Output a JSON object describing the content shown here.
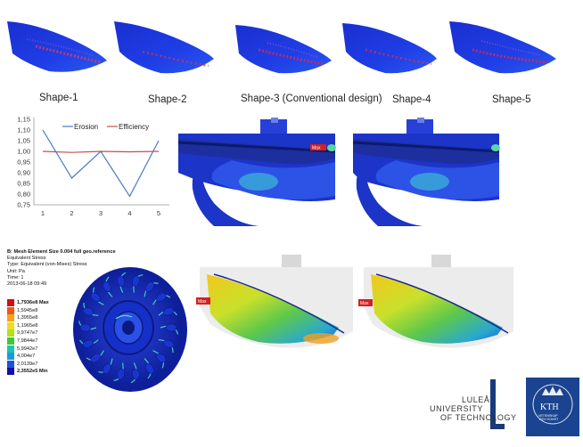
{
  "shapes": {
    "labels": [
      "Shape-1",
      "Shape-2",
      "Shape-3 (Conventional design)",
      "Shape-4",
      "Shape-5"
    ]
  },
  "chart_data": {
    "type": "line",
    "x": [
      1,
      2,
      3,
      4,
      5
    ],
    "series": [
      {
        "name": "Erosion",
        "color": "#4a7bc0",
        "values": [
          1.1,
          0.875,
          1.0,
          0.79,
          1.05
        ]
      },
      {
        "name": "Efficiency",
        "color": "#c0504d",
        "values": [
          1.0,
          0.995,
          1.0,
          0.998,
          1.0
        ]
      }
    ],
    "ylim": [
      0.75,
      1.15
    ],
    "yticks": [
      "1,15",
      "1,10",
      "1,05",
      "1,00",
      "0,95",
      "0,90",
      "0,85",
      "0,80",
      "0,75"
    ],
    "xticks": [
      "1",
      "2",
      "3",
      "4",
      "5"
    ],
    "legend_position": "top-center",
    "grid": false
  },
  "cfd": {
    "max_label": "Max"
  },
  "fea": {
    "title": "B: Mesh Element Size 0.004 full geo.reference",
    "result": "Equivalent Stress",
    "type": "Type: Equivalent (von-Mises) Stress",
    "unit": "Unit: Pa",
    "time": "Time: 1",
    "date": "2013-06-18 09:49",
    "legend": [
      {
        "value": "1,7936e8 Max",
        "color": "#d01010"
      },
      {
        "value": "1,5945e8",
        "color": "#ee5a12"
      },
      {
        "value": "1,3955e8",
        "color": "#f6a21a"
      },
      {
        "value": "1,1965e8",
        "color": "#f2dc1c"
      },
      {
        "value": "9,9747e7",
        "color": "#b6e01c"
      },
      {
        "value": "7,9844e7",
        "color": "#3ec83a"
      },
      {
        "value": "5,9942e7",
        "color": "#1cc6b0"
      },
      {
        "value": "4,004e7",
        "color": "#1c9ade"
      },
      {
        "value": "2,0139e7",
        "color": "#1c52de"
      },
      {
        "value": "2,3552e5 Min",
        "color": "#1010b0"
      }
    ]
  },
  "logos": {
    "ltu_line1": "LULEÅ",
    "ltu_line2": "UNIVERSITY",
    "ltu_line3": "OF TECHNOLOGY",
    "kth_text": "KTH",
    "kth_sub1": "VETENSKAP",
    "kth_sub2": "OCH KONST"
  }
}
